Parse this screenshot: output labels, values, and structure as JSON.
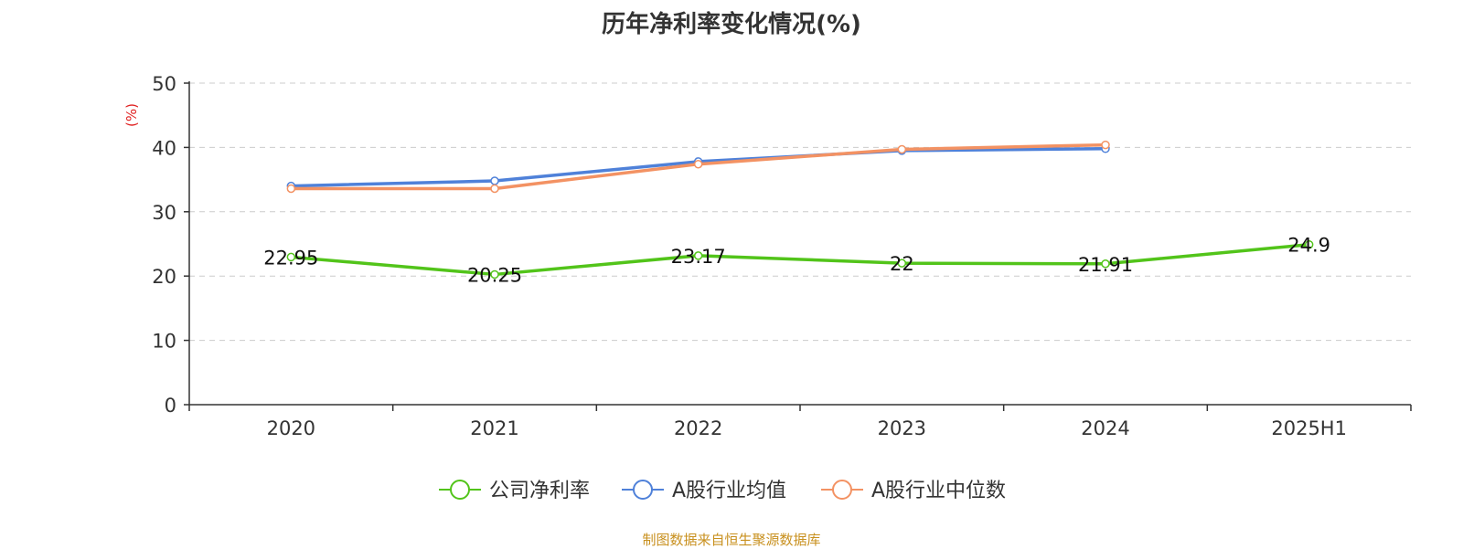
{
  "chart_data": {
    "type": "line",
    "title": "历年净利率变化情况(%)",
    "ylabel": "(%)",
    "xlabel": "",
    "categories": [
      "2020",
      "2021",
      "2022",
      "2023",
      "2024",
      "2025H1"
    ],
    "ylim": [
      0,
      50
    ],
    "yticks": [
      0,
      10,
      20,
      30,
      40,
      50
    ],
    "grid": true,
    "legend_position": "bottom",
    "series": [
      {
        "name": "公司净利率",
        "color": "#52c41a",
        "values": [
          22.95,
          20.25,
          23.17,
          22,
          21.91,
          24.9
        ],
        "labels": [
          "22.95",
          "20.25",
          "23.17",
          "22",
          "21.91",
          "24.9"
        ],
        "show_labels": true,
        "show_markers": true
      },
      {
        "name": "A股行业均值",
        "color": "#4f81d9",
        "values": [
          34.0,
          34.8,
          37.8,
          39.5,
          39.8,
          null
        ],
        "show_labels": false,
        "show_markers": true
      },
      {
        "name": "A股行业中位数",
        "color": "#f39263",
        "values": [
          33.6,
          33.6,
          37.4,
          39.7,
          40.4,
          null
        ],
        "show_labels": false,
        "show_markers": true
      }
    ]
  },
  "source": "制图数据来自恒生聚源数据库"
}
